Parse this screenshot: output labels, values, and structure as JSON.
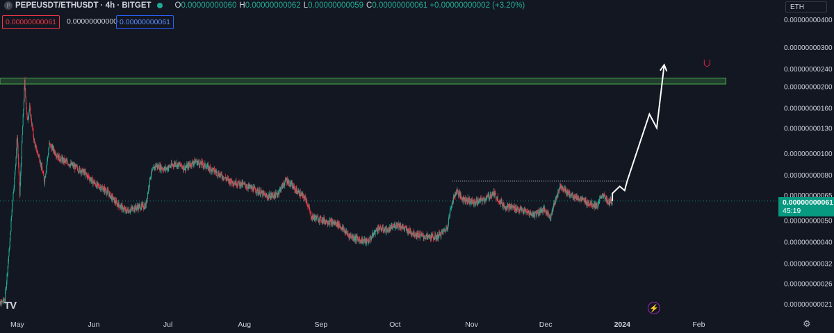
{
  "header": {
    "symbol_icon": "P",
    "symbol": "PEPEUSDT/ETHUSDT · 4h · BITGET",
    "status_color": "#22ab94",
    "open_label": "O",
    "open": "0.00000000060",
    "high_label": "H",
    "high": "0.00000000062",
    "low_label": "L",
    "low": "0.00000000059",
    "close_label": "C",
    "close": "0.00000000061",
    "change": "+0.00000000002 (+3.20%)"
  },
  "trade": {
    "sell": "0.00000000061",
    "spread": "0.00000000000",
    "buy": "0.00000000061"
  },
  "currency_button": "ETH",
  "price_tag": {
    "price": "0.00000000061",
    "countdown": "45:19"
  },
  "logo_text": "TV",
  "icons": {
    "settings": "gear-icon",
    "flash": "lightning-icon",
    "magnet": "magnet-icon"
  },
  "colors": {
    "up": "#22ab94",
    "down": "#f23645",
    "resistance_zone": "#4caf50",
    "arrow": "#ffffff",
    "current_price": "#089981"
  },
  "chart_data": {
    "type": "candlestick",
    "title": "",
    "y_scale": "log",
    "ylim": [
      1.9e-11,
      4.3e-10
    ],
    "y_ticks": [
      {
        "value": 4e-10,
        "label": "0.00000000400"
      },
      {
        "value": 3e-10,
        "label": "0.00000000300"
      },
      {
        "value": 2.4e-10,
        "label": "0.00000000240"
      },
      {
        "value": 2e-10,
        "label": "0.00000000200"
      },
      {
        "value": 1.6e-10,
        "label": "0.00000000160"
      },
      {
        "value": 1.3e-10,
        "label": "0.00000000130"
      },
      {
        "value": 1e-10,
        "label": "0.00000000100"
      },
      {
        "value": 8e-11,
        "label": "0.00000000080"
      },
      {
        "value": 6.5e-11,
        "label": "0.00000000065"
      },
      {
        "value": 5e-11,
        "label": "0.00000000050"
      },
      {
        "value": 4e-11,
        "label": "0.00000000040"
      },
      {
        "value": 3.2e-11,
        "label": "0.00000000032"
      },
      {
        "value": 2.6e-11,
        "label": "0.00000000026"
      },
      {
        "value": 2.1e-11,
        "label": "0.00000000021"
      }
    ],
    "x_ticks": [
      {
        "date": "2023-05-01",
        "label": "May",
        "bold": false
      },
      {
        "date": "2023-06-01",
        "label": "Jun",
        "bold": false
      },
      {
        "date": "2023-07-01",
        "label": "Jul",
        "bold": false
      },
      {
        "date": "2023-08-01",
        "label": "Aug",
        "bold": false
      },
      {
        "date": "2023-09-01",
        "label": "Sep",
        "bold": false
      },
      {
        "date": "2023-10-01",
        "label": "Oct",
        "bold": false
      },
      {
        "date": "2023-11-01",
        "label": "Nov",
        "bold": false
      },
      {
        "date": "2023-12-01",
        "label": "Dec",
        "bold": false
      },
      {
        "date": "2024-01-01",
        "label": "2024",
        "bold": true
      },
      {
        "date": "2024-02-01",
        "label": "Feb",
        "bold": false
      }
    ],
    "xlim": [
      "2023-04-24",
      "2024-03-02"
    ],
    "price_path": [
      {
        "date": "2023-04-22",
        "value": 2e-11
      },
      {
        "date": "2023-04-26",
        "value": 2.2e-11
      },
      {
        "date": "2023-04-28",
        "value": 4e-11
      },
      {
        "date": "2023-04-29",
        "value": 6e-11
      },
      {
        "date": "2023-04-30",
        "value": 8e-11
      },
      {
        "date": "2023-05-01",
        "value": 1.2e-10
      },
      {
        "date": "2023-05-02",
        "value": 6.5e-11
      },
      {
        "date": "2023-05-03",
        "value": 1.2e-10
      },
      {
        "date": "2023-05-04",
        "value": 2.1e-10
      },
      {
        "date": "2023-05-05",
        "value": 1.4e-10
      },
      {
        "date": "2023-05-06",
        "value": 1.6e-10
      },
      {
        "date": "2023-05-08",
        "value": 1.1e-10
      },
      {
        "date": "2023-05-10",
        "value": 9.5e-11
      },
      {
        "date": "2023-05-12",
        "value": 7.5e-11
      },
      {
        "date": "2023-05-14",
        "value": 1.1e-10
      },
      {
        "date": "2023-05-18",
        "value": 9.5e-11
      },
      {
        "date": "2023-05-22",
        "value": 9e-11
      },
      {
        "date": "2023-05-28",
        "value": 8.2e-11
      },
      {
        "date": "2023-06-02",
        "value": 7.2e-11
      },
      {
        "date": "2023-06-06",
        "value": 6.8e-11
      },
      {
        "date": "2023-06-10",
        "value": 6e-11
      },
      {
        "date": "2023-06-14",
        "value": 5.5e-11
      },
      {
        "date": "2023-06-18",
        "value": 5.7e-11
      },
      {
        "date": "2023-06-22",
        "value": 5.8e-11
      },
      {
        "date": "2023-06-24",
        "value": 8e-11
      },
      {
        "date": "2023-06-26",
        "value": 8.8e-11
      },
      {
        "date": "2023-06-30",
        "value": 8.5e-11
      },
      {
        "date": "2023-07-04",
        "value": 9e-11
      },
      {
        "date": "2023-07-08",
        "value": 8.6e-11
      },
      {
        "date": "2023-07-12",
        "value": 9.2e-11
      },
      {
        "date": "2023-07-16",
        "value": 8.8e-11
      },
      {
        "date": "2023-07-20",
        "value": 8.3e-11
      },
      {
        "date": "2023-07-26",
        "value": 7.5e-11
      },
      {
        "date": "2023-08-01",
        "value": 7.2e-11
      },
      {
        "date": "2023-08-06",
        "value": 6.8e-11
      },
      {
        "date": "2023-08-10",
        "value": 6.4e-11
      },
      {
        "date": "2023-08-14",
        "value": 6.5e-11
      },
      {
        "date": "2023-08-18",
        "value": 7.6e-11
      },
      {
        "date": "2023-08-22",
        "value": 6.8e-11
      },
      {
        "date": "2023-08-26",
        "value": 6.2e-11
      },
      {
        "date": "2023-08-28",
        "value": 5.2e-11
      },
      {
        "date": "2023-09-02",
        "value": 5e-11
      },
      {
        "date": "2023-09-08",
        "value": 4.8e-11
      },
      {
        "date": "2023-09-12",
        "value": 4.3e-11
      },
      {
        "date": "2023-09-16",
        "value": 4.1e-11
      },
      {
        "date": "2023-09-20",
        "value": 4e-11
      },
      {
        "date": "2023-09-24",
        "value": 4.6e-11
      },
      {
        "date": "2023-09-28",
        "value": 4.5e-11
      },
      {
        "date": "2023-10-02",
        "value": 4.8e-11
      },
      {
        "date": "2023-10-06",
        "value": 4.5e-11
      },
      {
        "date": "2023-10-10",
        "value": 4.3e-11
      },
      {
        "date": "2023-10-14",
        "value": 4.2e-11
      },
      {
        "date": "2023-10-18",
        "value": 4.2e-11
      },
      {
        "date": "2023-10-22",
        "value": 4.6e-11
      },
      {
        "date": "2023-10-24",
        "value": 6e-11
      },
      {
        "date": "2023-10-26",
        "value": 6.8e-11
      },
      {
        "date": "2023-10-28",
        "value": 6.3e-11
      },
      {
        "date": "2023-11-02",
        "value": 6e-11
      },
      {
        "date": "2023-11-06",
        "value": 6.2e-11
      },
      {
        "date": "2023-11-10",
        "value": 6.6e-11
      },
      {
        "date": "2023-11-14",
        "value": 5.8e-11
      },
      {
        "date": "2023-11-18",
        "value": 5.7e-11
      },
      {
        "date": "2023-11-22",
        "value": 5.5e-11
      },
      {
        "date": "2023-11-26",
        "value": 5.3e-11
      },
      {
        "date": "2023-11-30",
        "value": 5.6e-11
      },
      {
        "date": "2023-12-03",
        "value": 5.2e-11
      },
      {
        "date": "2023-12-05",
        "value": 6.2e-11
      },
      {
        "date": "2023-12-07",
        "value": 7.2e-11
      },
      {
        "date": "2023-12-10",
        "value": 6.6e-11
      },
      {
        "date": "2023-12-14",
        "value": 6.3e-11
      },
      {
        "date": "2023-12-18",
        "value": 6e-11
      },
      {
        "date": "2023-12-22",
        "value": 5.8e-11
      },
      {
        "date": "2023-12-24",
        "value": 6.6e-11
      },
      {
        "date": "2023-12-26",
        "value": 6e-11
      },
      {
        "date": "2023-12-28",
        "value": 6.1e-11
      }
    ],
    "price_min": 2e-11,
    "zone_start": "2023-04-24",
    "zone_end": "2024-02-12",
    "annotations": {
      "resistance_zone": {
        "from": 2.05e-10,
        "to": 2.18e-10,
        "start": "2023-04-24",
        "end": "2024-02-12"
      },
      "range_high_line": {
        "value": 7.5e-11,
        "start": "2023-10-24",
        "end": "2024-01-03"
      },
      "current_price_line": {
        "value": 6.1e-11
      },
      "projection_arrow": [
        {
          "date": "2023-12-28",
          "value": 6.1e-11
        },
        {
          "date": "2023-12-28",
          "value": 6.6e-11
        },
        {
          "date": "2023-12-31",
          "value": 7.1e-11
        },
        {
          "date": "2024-01-02",
          "value": 6.8e-11
        },
        {
          "date": "2024-01-03",
          "value": 7.5e-11
        },
        {
          "date": "2024-01-12",
          "value": 1.5e-10
        },
        {
          "date": "2024-01-15",
          "value": 1.3e-10
        },
        {
          "date": "2024-01-18",
          "value": 2.5e-10
        }
      ]
    }
  }
}
